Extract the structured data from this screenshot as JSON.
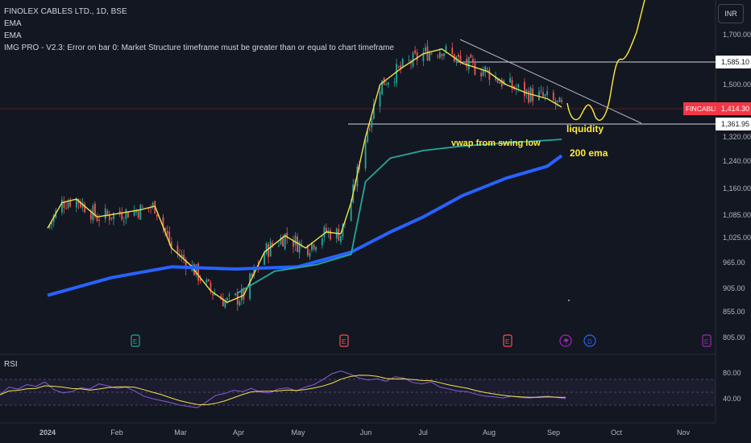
{
  "header": {
    "symbol_line": "FINOLEX CABLES LTD., 1D, BSE",
    "indicators": [
      "EMA",
      "EMA",
      "IMG PRO - V2.3: Error on bar 0: Market Structure timeframe must be greater than or equal to chart timeframe"
    ]
  },
  "currency_button": "INR",
  "rsi_label": "RSI",
  "colors": {
    "background": "#131722",
    "up_candle": "#26a69a",
    "down_candle": "#ef5350",
    "ema_fast": "#f2e24c",
    "ema_200": "#2962ff",
    "vwap": "#26a69a",
    "projection": "#ffeb3b",
    "price_label": "#f23645",
    "rsi_line": "#7e57c2"
  },
  "chart_data": {
    "type": "line",
    "title": "FINOLEX CABLES LTD., 1D, BSE",
    "price_axis": {
      "ticks": [
        "1,700.00",
        "1,500.00",
        "1,320.00",
        "1,240.00",
        "1,160.00",
        "1,085.00",
        "1,025.00",
        "965.00",
        "905.00",
        "855.00",
        "805.00"
      ],
      "tick_values": [
        1700,
        1500,
        1320,
        1240,
        1160,
        1085,
        1025,
        965,
        905,
        855,
        805
      ]
    },
    "time_axis": {
      "labels": [
        "2024",
        "Feb",
        "Mar",
        "Apr",
        "May",
        "Jun",
        "Jul",
        "Aug",
        "Sep",
        "Oct",
        "Nov"
      ]
    },
    "price_labels": [
      {
        "label": "",
        "value": "1,585.10",
        "price": 1585.1
      },
      {
        "label": "FINCABLES",
        "value": "1,414.30",
        "price": 1414.3
      },
      {
        "label": "",
        "value": "1,361.95",
        "price": 1361.95
      }
    ],
    "series": [
      {
        "name": "EMA",
        "points": [
          [
            "2024-01-01",
            1050
          ],
          [
            "2024-01-08",
            1120
          ],
          [
            "2024-01-15",
            1130
          ],
          [
            "2024-01-25",
            1080
          ],
          [
            "2024-02-05",
            1090
          ],
          [
            "2024-02-15",
            1100
          ],
          [
            "2024-02-22",
            1110
          ],
          [
            "2024-03-01",
            1000
          ],
          [
            "2024-03-10",
            960
          ],
          [
            "2024-03-20",
            900
          ],
          [
            "2024-03-28",
            875
          ],
          [
            "2024-04-05",
            890
          ],
          [
            "2024-04-15",
            990
          ],
          [
            "2024-04-25",
            1030
          ],
          [
            "2024-05-05",
            1000
          ],
          [
            "2024-05-15",
            1040
          ],
          [
            "2024-05-22",
            1035
          ],
          [
            "2024-05-27",
            1120
          ],
          [
            "2024-06-03",
            1320
          ],
          [
            "2024-06-10",
            1500
          ],
          [
            "2024-06-20",
            1560
          ],
          [
            "2024-07-01",
            1620
          ],
          [
            "2024-07-10",
            1640
          ],
          [
            "2024-07-20",
            1580
          ],
          [
            "2024-08-01",
            1550
          ],
          [
            "2024-08-10",
            1500
          ],
          [
            "2024-08-20",
            1470
          ],
          [
            "2024-08-30",
            1450
          ],
          [
            "2024-09-06",
            1420
          ]
        ]
      },
      {
        "name": "EMA",
        "points": [
          [
            "2024-01-01",
            890
          ],
          [
            "2024-02-01",
            930
          ],
          [
            "2024-03-01",
            955
          ],
          [
            "2024-04-01",
            950
          ],
          [
            "2024-05-01",
            955
          ],
          [
            "2024-05-27",
            990
          ],
          [
            "2024-06-15",
            1040
          ],
          [
            "2024-07-01",
            1080
          ],
          [
            "2024-07-20",
            1140
          ],
          [
            "2024-08-10",
            1190
          ],
          [
            "2024-08-30",
            1225
          ],
          [
            "2024-09-06",
            1258
          ]
        ]
      },
      {
        "name": "vwap from swing low",
        "points": [
          [
            "2024-04-02",
            895
          ],
          [
            "2024-04-20",
            945
          ],
          [
            "2024-05-10",
            960
          ],
          [
            "2024-05-27",
            985
          ],
          [
            "2024-06-03",
            1180
          ],
          [
            "2024-06-15",
            1250
          ],
          [
            "2024-07-01",
            1275
          ],
          [
            "2024-07-20",
            1290
          ],
          [
            "2024-08-10",
            1300
          ],
          [
            "2024-09-06",
            1312
          ]
        ]
      }
    ],
    "annotations": [
      {
        "text": "liquidity",
        "color": "#ffeb3b"
      },
      {
        "text": "vwap from swing low",
        "color": "#ffeb3b"
      },
      {
        "text": "200 ema",
        "color": "#ffeb3b"
      }
    ],
    "event_markers": [
      "E",
      "E",
      "E",
      "D",
      "E"
    ],
    "rsi": {
      "ticks": [
        "80.00",
        "40.00"
      ],
      "tick_values": [
        80,
        40
      ],
      "band": [
        30,
        70
      ],
      "values": [
        46,
        58,
        55,
        62,
        59,
        66,
        54,
        49,
        51,
        57,
        55,
        63,
        60,
        56,
        58,
        52,
        44,
        40,
        37,
        34,
        30,
        28,
        26,
        35,
        45,
        48,
        53,
        51,
        56,
        50,
        49,
        55,
        57,
        52,
        58,
        62,
        70,
        79,
        83,
        78,
        72,
        69,
        71,
        67,
        74,
        72,
        65,
        63,
        66,
        58,
        55,
        52,
        51,
        47,
        44,
        43,
        41,
        44,
        42,
        41,
        43,
        44,
        42,
        40
      ]
    }
  }
}
